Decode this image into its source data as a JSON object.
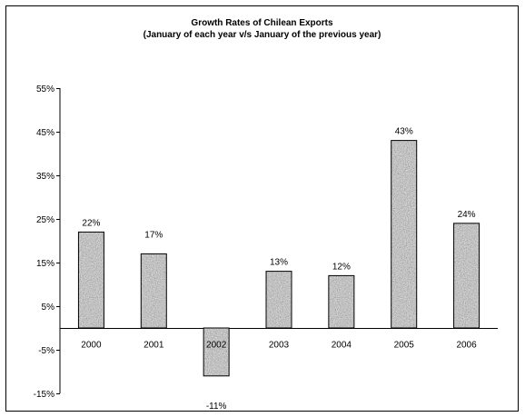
{
  "chart_data": {
    "type": "bar",
    "title": "Growth Rates of Chilean Exports",
    "subtitle": "(January of each year v/s January of the previous year)",
    "categories": [
      "2000",
      "2001",
      "2002",
      "2003",
      "2004",
      "2005",
      "2006"
    ],
    "values": [
      22,
      17,
      -11,
      13,
      12,
      43,
      24
    ],
    "data_labels": [
      "22%",
      "17%",
      "-11%",
      "13%",
      "12%",
      "43%",
      "24%"
    ],
    "y_ticks": [
      55,
      45,
      35,
      25,
      15,
      5,
      -5,
      -15
    ],
    "y_tick_labels": [
      "55%",
      "45%",
      "35%",
      "25%",
      "15%",
      "5%",
      "-5%",
      "-15%"
    ],
    "ylim": [
      -15,
      55
    ],
    "xlabel": "",
    "ylabel": "",
    "grid": false,
    "legend": "none",
    "bar_fill": "gray granite texture",
    "colors": {
      "bar": "#9a9a9a",
      "axis": "#000000",
      "background": "#ffffff"
    }
  }
}
